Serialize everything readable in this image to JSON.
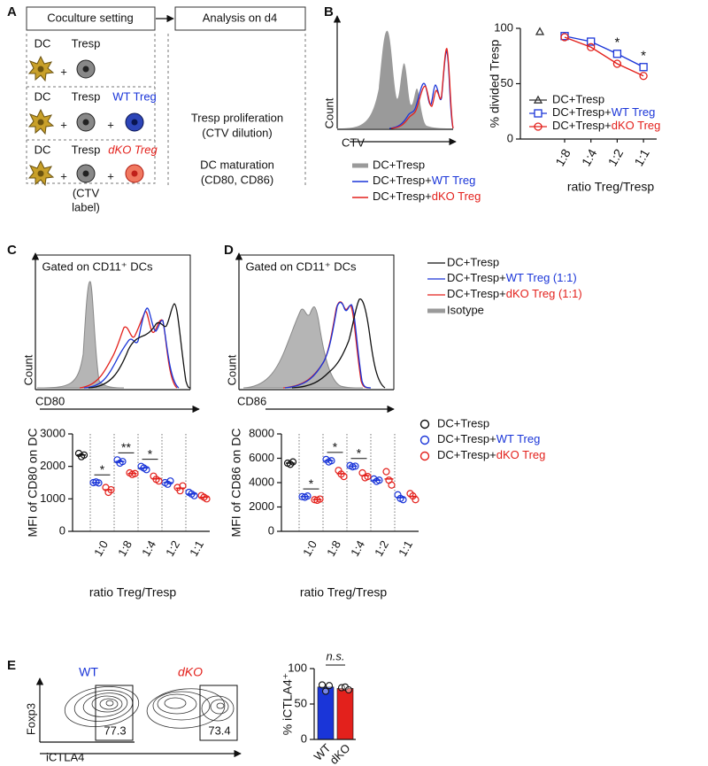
{
  "panel_labels": [
    "A",
    "B",
    "C",
    "D",
    "E"
  ],
  "panel_a": {
    "setting_title": "Coculture setting",
    "analysis_title": "Analysis on d4",
    "cell_labels": [
      "DC",
      "Tresp",
      "WT Treg",
      "dKO Treg"
    ],
    "plus": "+",
    "ctv_label": [
      "(CTV",
      "label)"
    ],
    "readouts": [
      "Tresp proliferation",
      "(CTV dilution)",
      "DC maturation",
      "(CD80, CD86)"
    ]
  },
  "histograms": {
    "b": {
      "y_label": "Count",
      "x_label": "CTV",
      "legend": [
        "DC+Tresp",
        "DC+Tresp+WT Treg",
        "DC+Tresp+dKO Treg"
      ]
    },
    "cd": {
      "gate": "Gated on CD11⁺ DCs",
      "y_label": "Count",
      "x_labels": [
        "CD80",
        "CD86"
      ],
      "legend": [
        "DC+Tresp",
        "DC+Tresp+WT Treg (1:1)",
        "DC+Tresp+dKO Treg (1:1)",
        "Isotype"
      ]
    }
  },
  "flow_e": {
    "titles": [
      "WT",
      "dKO"
    ],
    "y_label": "Foxp3",
    "x_label": "iCTLA4",
    "gates": [
      77.3,
      73.4
    ]
  },
  "chart_data": [
    {
      "type": "line",
      "y_label": "% divided Tresp",
      "x_label": "ratio Treg/Tresp",
      "categories": [
        null,
        "1:8",
        "1:4",
        "1:2",
        "1:1"
      ],
      "series": [
        {
          "name": "DC+Tresp",
          "color": "#333333",
          "marker": "triangle",
          "values": [
            97,
            null,
            null,
            null,
            null
          ]
        },
        {
          "name": "DC+Tresp+WT Treg",
          "color": "#1a35d8",
          "marker": "square",
          "values": [
            null,
            93,
            88,
            77,
            65
          ]
        },
        {
          "name": "DC+Tresp+dKO Treg",
          "color": "#e3211c",
          "marker": "circle",
          "values": [
            null,
            92,
            83,
            68,
            57
          ]
        }
      ],
      "ylim": [
        0,
        100
      ],
      "yticks": [
        0,
        50,
        100
      ],
      "annotations": [
        {
          "at": "1:2",
          "text": "*"
        },
        {
          "at": "1:1",
          "text": "*"
        }
      ]
    },
    {
      "type": "dot",
      "y_label": "MFI of CD80 on DC",
      "x_label": "ratio Treg/Tresp",
      "categories": [
        null,
        "1:0",
        "1:8",
        "1:4",
        "1:2",
        "1:1"
      ],
      "series": [
        {
          "name": "DC+Tresp",
          "color": "#111111",
          "values": [
            2350,
            null,
            null,
            null,
            null,
            null
          ],
          "points": [
            [
              2400,
              2300,
              2350
            ],
            null,
            null,
            null,
            null,
            null
          ]
        },
        {
          "name": "DC+Tresp+WT Treg",
          "color": "#1a35d8",
          "values": [
            null,
            1500,
            2150,
            1950,
            1500,
            1150
          ],
          "points": [
            null,
            [
              1500,
              1520,
              1490
            ],
            [
              2200,
              2100,
              2150
            ],
            [
              2000,
              1950,
              1900
            ],
            [
              1500,
              1450,
              1550
            ],
            [
              1200,
              1150,
              1100
            ]
          ]
        },
        {
          "name": "DC+Tresp+dKO Treg",
          "color": "#e3211c",
          "values": [
            null,
            1280,
            1780,
            1620,
            1330,
            1050
          ],
          "points": [
            null,
            [
              1350,
              1200,
              1280
            ],
            [
              1800,
              1750,
              1780
            ],
            [
              1700,
              1600,
              1550
            ],
            [
              1350,
              1250,
              1400
            ],
            [
              1100,
              1050,
              1000
            ]
          ]
        }
      ],
      "ylim": [
        0,
        3000
      ],
      "yticks": [
        0,
        1000,
        2000,
        3000
      ],
      "annotations": [
        {
          "at": "1:0",
          "text": "*"
        },
        {
          "at": "1:8",
          "text": "**"
        },
        {
          "at": "1:4",
          "text": "*"
        }
      ]
    },
    {
      "type": "dot",
      "y_label": "MFI of CD86 on DC",
      "x_label": "ratio Treg/Tresp",
      "categories": [
        null,
        "1:0",
        "1:8",
        "1:4",
        "1:2",
        "1:1"
      ],
      "series": [
        {
          "color": "#111111",
          "values": [
            5600,
            null,
            null,
            null,
            null,
            null
          ],
          "points": [
            [
              5600,
              5500,
              5700
            ],
            null,
            null,
            null,
            null,
            null
          ]
        },
        {
          "color": "#1a35d8",
          "values": [
            null,
            2850,
            5800,
            5350,
            4200,
            2770
          ],
          "points": [
            null,
            [
              2850,
              2800,
              2900
            ],
            [
              5900,
              5700,
              5800
            ],
            [
              5400,
              5300,
              5350
            ],
            [
              4300,
              4100,
              4200
            ],
            [
              3000,
              2700,
              2600
            ]
          ]
        },
        {
          "color": "#e3211c",
          "values": [
            null,
            2600,
            4730,
            4570,
            4300,
            2870
          ],
          "points": [
            null,
            [
              2600,
              2550,
              2650
            ],
            [
              5000,
              4700,
              4500
            ],
            [
              4800,
              4400,
              4500
            ],
            [
              4900,
              4200,
              3800
            ],
            [
              3100,
              2900,
              2600
            ]
          ]
        }
      ],
      "ylim": [
        0,
        8000
      ],
      "yticks": [
        0,
        2000,
        4000,
        6000,
        8000
      ],
      "annotations": [
        {
          "at": "1:0",
          "text": "*"
        },
        {
          "at": "1:8",
          "text": "*"
        },
        {
          "at": "1:4",
          "text": "*"
        }
      ]
    },
    {
      "type": "bar",
      "y_label": "% iCTLA4⁺",
      "categories": [
        "WT",
        "dKO"
      ],
      "values": [
        74,
        72
      ],
      "colors": [
        "#1a35d8",
        "#e3211c"
      ],
      "points": [
        [
          77,
          68,
          76
        ],
        [
          73,
          74,
          70
        ]
      ],
      "ylim": [
        0,
        100
      ],
      "yticks": [
        0,
        50,
        100
      ],
      "annotations": [
        {
          "text": "n.s."
        }
      ]
    }
  ]
}
